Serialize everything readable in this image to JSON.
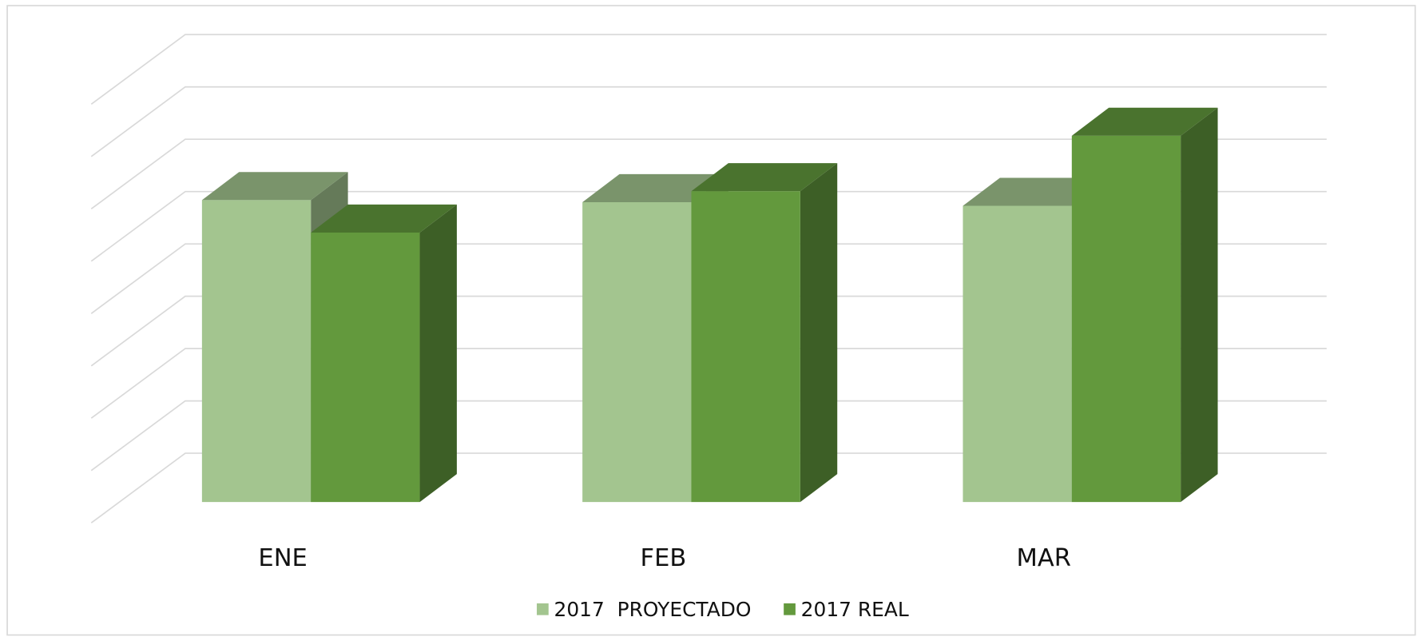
{
  "chart_data": {
    "type": "bar3d",
    "categories": [
      "ENE",
      "FEB",
      "MAR"
    ],
    "series": [
      {
        "name": "2017  PROYECTADO",
        "color": "#a3c58f",
        "values": [
          5.77,
          5.73,
          5.66
        ]
      },
      {
        "name": "2017 REAL",
        "color": "#63993d",
        "values": [
          5.15,
          5.94,
          7.0
        ]
      }
    ],
    "ylim": [
      0,
      8
    ],
    "yticks": [
      0,
      1,
      2,
      3,
      4,
      5,
      6,
      7,
      8
    ],
    "grid": true,
    "legend": "bottom"
  }
}
